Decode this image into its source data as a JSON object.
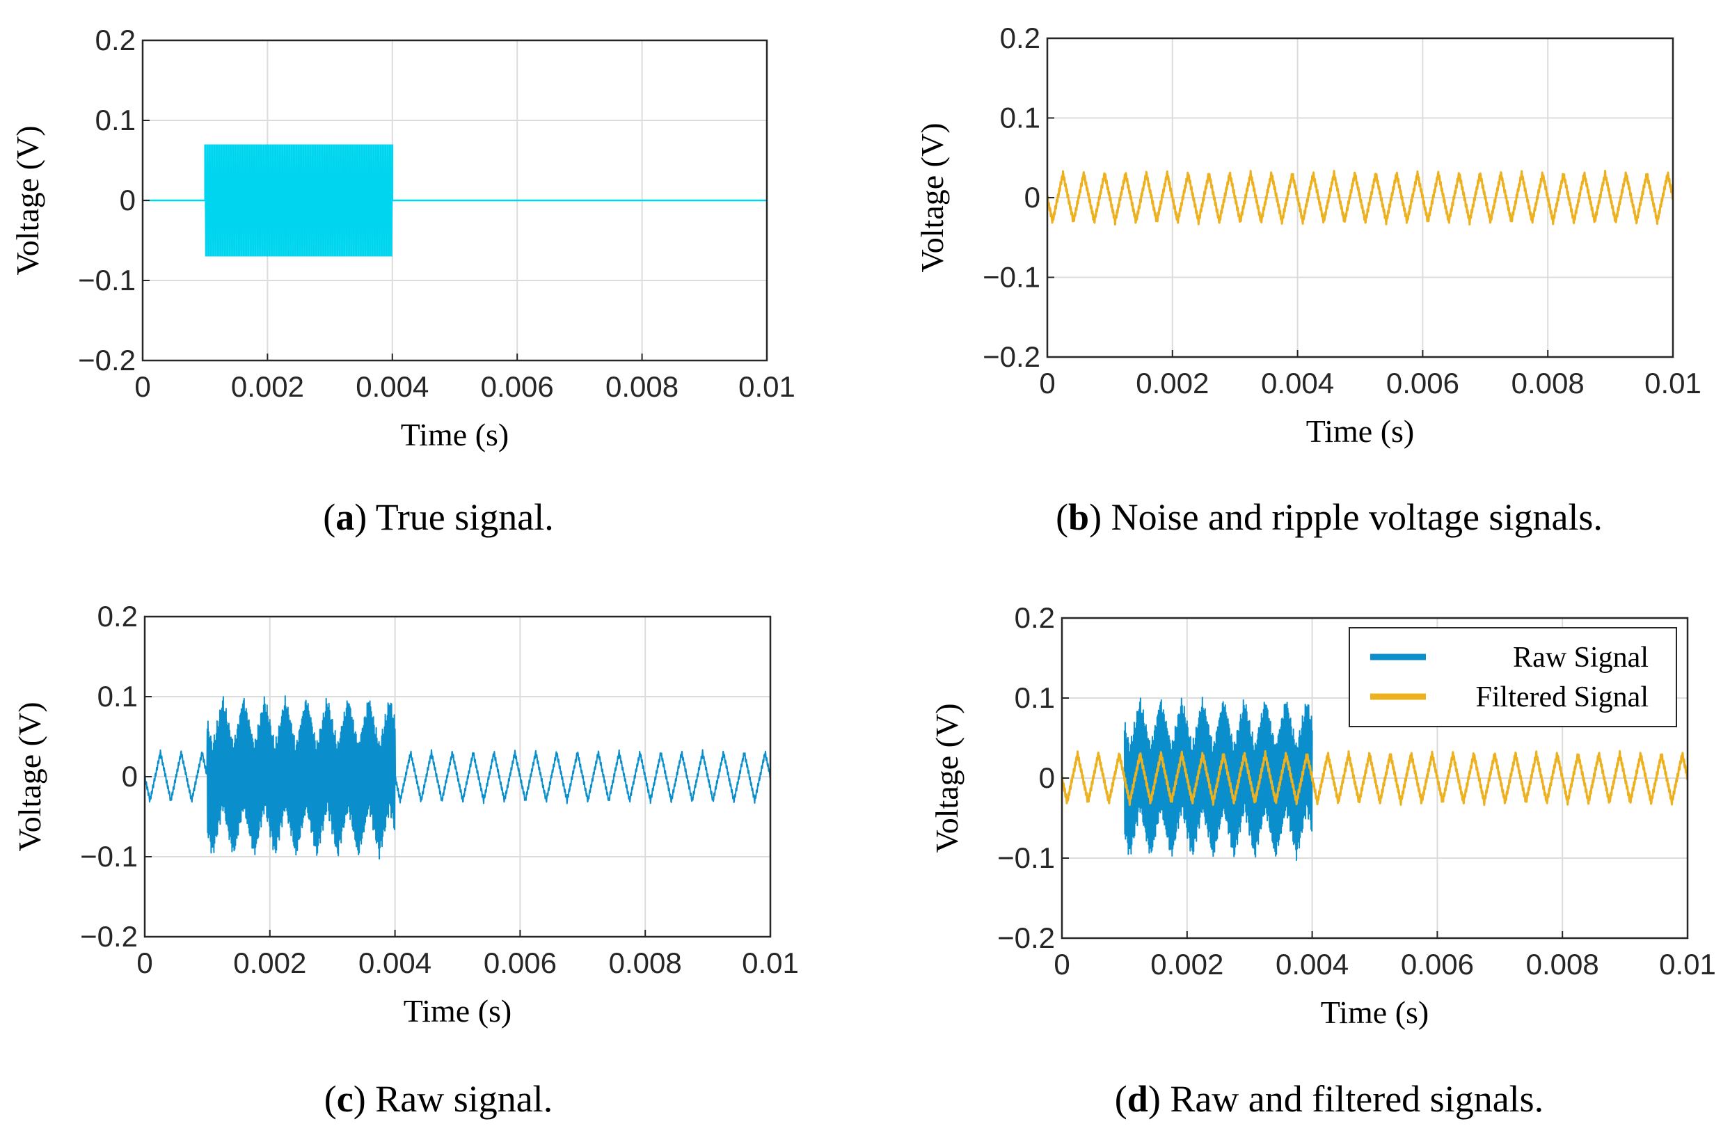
{
  "chart_data": [
    {
      "id": "a",
      "type": "line",
      "caption_letter": "a",
      "caption_text": " True signal.",
      "xlabel": "Time (s)",
      "ylabel": "Voltage (V)",
      "xlim": [
        0,
        0.01
      ],
      "ylim": [
        -0.2,
        0.2
      ],
      "xticks": [
        0,
        0.002,
        0.004,
        0.006,
        0.008,
        0.01
      ],
      "xtick_labels": [
        "0",
        "0.002",
        "0.004",
        "0.006",
        "0.008",
        "0.01"
      ],
      "yticks": [
        -0.2,
        -0.1,
        0,
        0.1,
        0.2
      ],
      "ytick_labels": [
        "−0.2",
        "−0.1",
        "0",
        "0.1",
        "0.2"
      ],
      "grid": true,
      "series": [
        {
          "color": "#00D5F0",
          "kind": "burst",
          "burst_start": 0.001,
          "burst_end": 0.004,
          "amplitude": 0.07
        }
      ]
    },
    {
      "id": "b",
      "type": "line",
      "caption_letter": "b",
      "caption_text": " Noise and ripple voltage signals.",
      "xlabel": "Time (s)",
      "ylabel": "Voltage (V)",
      "xlim": [
        0,
        0.01
      ],
      "ylim": [
        -0.2,
        0.2
      ],
      "xticks": [
        0,
        0.002,
        0.004,
        0.006,
        0.008,
        0.01
      ],
      "xtick_labels": [
        "0",
        "0.002",
        "0.004",
        "0.006",
        "0.008",
        "0.01"
      ],
      "yticks": [
        -0.2,
        -0.1,
        0,
        0.1,
        0.2
      ],
      "ytick_labels": [
        "−0.2",
        "−0.1",
        "0",
        "0.1",
        "0.2"
      ],
      "grid": true,
      "series": [
        {
          "color": "#EDB120",
          "kind": "ripple",
          "ripple_periods": 30,
          "ripple_amplitude": 0.03
        }
      ]
    },
    {
      "id": "c",
      "type": "line",
      "caption_letter": "c",
      "caption_text": " Raw signal.",
      "xlabel": "Time (s)",
      "ylabel": "Voltage (V)",
      "xlim": [
        0,
        0.01
      ],
      "ylim": [
        -0.2,
        0.2
      ],
      "xticks": [
        0,
        0.002,
        0.004,
        0.006,
        0.008,
        0.01
      ],
      "xtick_labels": [
        "0",
        "0.002",
        "0.004",
        "0.006",
        "0.008",
        "0.01"
      ],
      "yticks": [
        -0.2,
        -0.1,
        0,
        0.1,
        0.2
      ],
      "ytick_labels": [
        "−0.2",
        "−0.1",
        "0",
        "0.1",
        "0.2"
      ],
      "grid": true,
      "series": [
        {
          "color": "#0A8FCC",
          "kind": "raw",
          "ripple_periods": 30,
          "ripple_amplitude": 0.03,
          "burst_start": 0.001,
          "burst_end": 0.004,
          "amplitude": 0.07
        }
      ]
    },
    {
      "id": "d",
      "type": "line",
      "caption_letter": "d",
      "caption_text": " Raw and filtered signals.",
      "xlabel": "Time (s)",
      "ylabel": "Voltage (V)",
      "xlim": [
        0,
        0.01
      ],
      "ylim": [
        -0.2,
        0.2
      ],
      "xticks": [
        0,
        0.002,
        0.004,
        0.006,
        0.008,
        0.01
      ],
      "xtick_labels": [
        "0",
        "0.002",
        "0.004",
        "0.006",
        "0.008",
        "0.01"
      ],
      "yticks": [
        -0.2,
        -0.1,
        0,
        0.1,
        0.2
      ],
      "ytick_labels": [
        "−0.2",
        "−0.1",
        "0",
        "0.1",
        "0.2"
      ],
      "grid": true,
      "legend_position": "top-right",
      "series": [
        {
          "name": "Raw Signal",
          "color": "#0A8FCC",
          "kind": "raw_burst_only",
          "ripple_periods": 30,
          "ripple_amplitude": 0.03,
          "burst_start": 0.001,
          "burst_end": 0.004,
          "amplitude": 0.07
        },
        {
          "name": "Filtered Signal",
          "color": "#EDB120",
          "kind": "ripple",
          "ripple_periods": 30,
          "ripple_amplitude": 0.03
        }
      ]
    }
  ]
}
